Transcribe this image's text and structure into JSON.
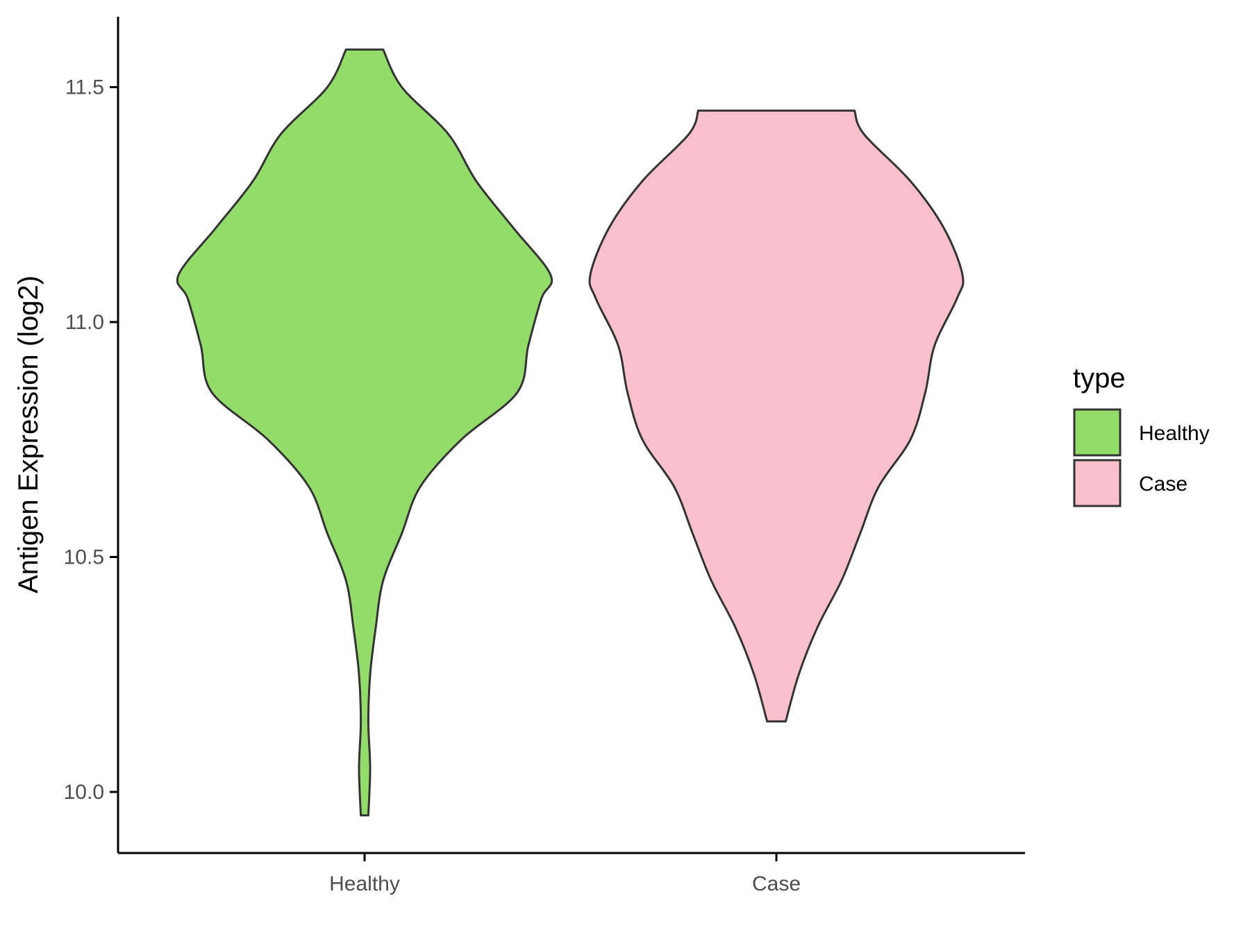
{
  "chart_data": {
    "type": "violin",
    "title": "",
    "xlabel": "",
    "ylabel": "Antigen Expression (log2)",
    "ylim": [
      9.87,
      11.65
    ],
    "yticks": [
      10.0,
      10.5,
      11.0,
      11.5
    ],
    "ytick_labels": [
      "10.0",
      "10.5",
      "11.0",
      "11.5"
    ],
    "categories": [
      "Healthy",
      "Case"
    ],
    "grid": false,
    "legend": {
      "title": "type",
      "placement": "right",
      "entries": [
        "Healthy",
        "Case"
      ]
    },
    "series": [
      {
        "category": "Healthy",
        "color": "#93dc6a",
        "y_min": 9.95,
        "y_max": 11.58,
        "density_profile": [
          [
            9.95,
            0.02
          ],
          [
            10.05,
            0.03
          ],
          [
            10.15,
            0.02
          ],
          [
            10.25,
            0.03
          ],
          [
            10.35,
            0.06
          ],
          [
            10.45,
            0.1
          ],
          [
            10.55,
            0.2
          ],
          [
            10.65,
            0.3
          ],
          [
            10.75,
            0.52
          ],
          [
            10.85,
            0.82
          ],
          [
            10.95,
            0.88
          ],
          [
            11.05,
            0.95
          ],
          [
            11.1,
            1.0
          ],
          [
            11.2,
            0.8
          ],
          [
            11.3,
            0.6
          ],
          [
            11.4,
            0.45
          ],
          [
            11.5,
            0.2
          ],
          [
            11.58,
            0.1
          ]
        ]
      },
      {
        "category": "Case",
        "color": "#f8c0cb",
        "y_min": 10.15,
        "y_max": 11.45,
        "density_profile": [
          [
            10.15,
            0.05
          ],
          [
            10.25,
            0.12
          ],
          [
            10.35,
            0.22
          ],
          [
            10.45,
            0.35
          ],
          [
            10.55,
            0.45
          ],
          [
            10.65,
            0.55
          ],
          [
            10.75,
            0.72
          ],
          [
            10.85,
            0.8
          ],
          [
            10.95,
            0.85
          ],
          [
            11.05,
            0.97
          ],
          [
            11.1,
            1.0
          ],
          [
            11.2,
            0.9
          ],
          [
            11.3,
            0.72
          ],
          [
            11.4,
            0.47
          ],
          [
            11.45,
            0.42
          ]
        ]
      }
    ]
  }
}
